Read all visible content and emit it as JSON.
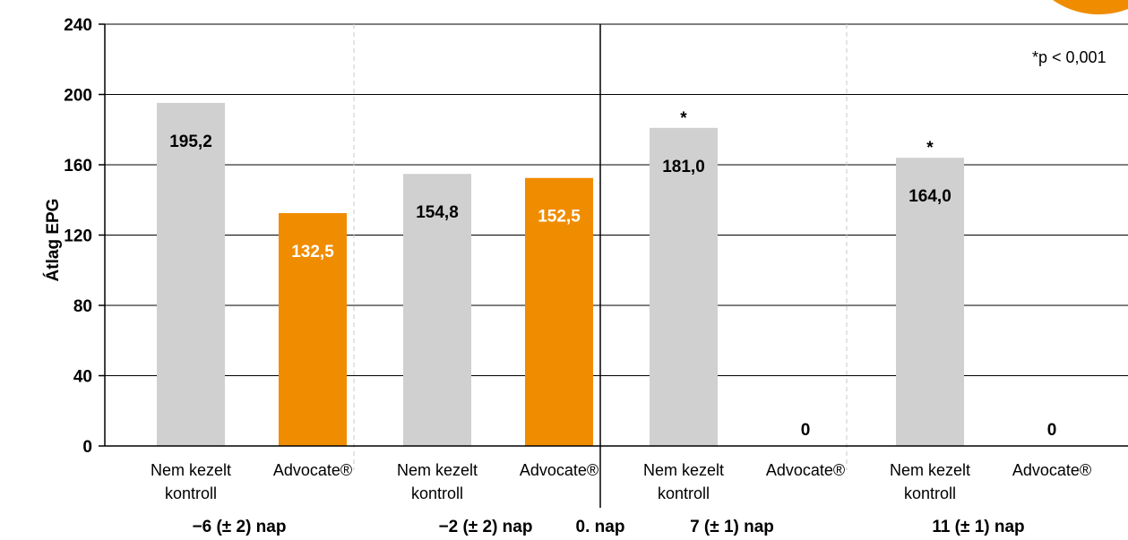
{
  "chart_data": {
    "type": "bar",
    "ylabel": "Átlag EPG",
    "ylim": [
      0,
      240
    ],
    "yticks": [
      0,
      40,
      80,
      120,
      160,
      200,
      240
    ],
    "grid": true,
    "note": "*p < 0,001",
    "groups": [
      {
        "label": "−6 (± 2) nap",
        "bars": [
          {
            "category": "Nem kezelt kontroll",
            "value": 195.2,
            "value_label": "195,2",
            "color": "gray",
            "star": ""
          },
          {
            "category": "Advocate®",
            "value": 132.5,
            "value_label": "132,5",
            "color": "orange",
            "star": ""
          }
        ]
      },
      {
        "label": "−2 (± 2) nap",
        "bars": [
          {
            "category": "Nem kezelt kontroll",
            "value": 154.8,
            "value_label": "154,8",
            "color": "gray",
            "star": ""
          },
          {
            "category": "Advocate®",
            "value": 152.5,
            "value_label": "152,5",
            "color": "orange",
            "star": ""
          }
        ]
      },
      {
        "label": "7 (± 1) nap",
        "bars": [
          {
            "category": "Nem kezelt kontroll",
            "value": 181.0,
            "value_label": "181,0",
            "color": "gray",
            "star": "*"
          },
          {
            "category": "Advocate®",
            "value": 0,
            "value_label": "0",
            "color": "orange",
            "star": ""
          }
        ]
      },
      {
        "label": "11 (± 1) nap",
        "bars": [
          {
            "category": "Nem kezelt kontroll",
            "value": 164.0,
            "value_label": "164,0",
            "color": "gray",
            "star": "*"
          },
          {
            "category": "Advocate®",
            "value": 0,
            "value_label": "0",
            "color": "orange",
            "star": ""
          }
        ]
      }
    ],
    "divider_label": "0. nap",
    "colors": {
      "gray": "#d0d0d0",
      "orange": "#f08c00",
      "axis": "#000000",
      "grid": "#000000",
      "dashed": "#c8c8c8"
    }
  }
}
